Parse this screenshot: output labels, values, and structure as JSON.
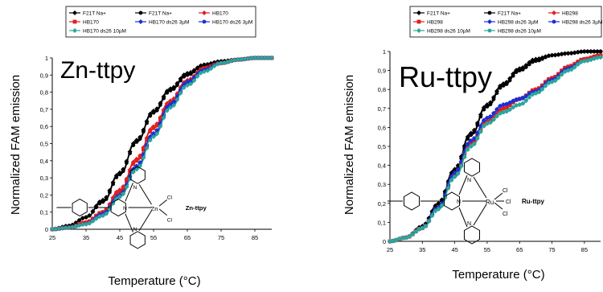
{
  "colors": {
    "black": "#000000",
    "red": "#e02020",
    "blue": "#1a2fd6",
    "teal": "#2aa69a",
    "frame": "#000000"
  },
  "chart_data": [
    {
      "type": "line",
      "title": "Zn-ttpy",
      "xlabel": "Temperature (°C)",
      "ylabel": "Normalized FAM emission",
      "xlim": [
        25,
        90
      ],
      "ylim": [
        0,
        1
      ],
      "xticks": [
        "25",
        "35",
        "45",
        "55",
        "65",
        "75",
        "85"
      ],
      "yticks": [
        "0",
        "0,1",
        "0,2",
        "0,3",
        "0,4",
        "0,5",
        "0,6",
        "0,7",
        "0,8",
        "0,9",
        "1"
      ],
      "legend": [
        "F21T Na+",
        "F21T Na+",
        "HB170",
        "HB170",
        "HB170 ds26 3µM",
        "HB170 ds26 3µM",
        "HB170 ds26 10µM"
      ],
      "structure_label": "Zn-ttpy",
      "atom_labels": {
        "metal": "Zn",
        "n": "N",
        "cl": "Cl"
      },
      "series": [
        {
          "color": "black",
          "marker": "diamond",
          "x": [
            25,
            30,
            35,
            40,
            45,
            50,
            55,
            60,
            65,
            70,
            75,
            80,
            85,
            90
          ],
          "y": [
            0.0,
            0.02,
            0.07,
            0.17,
            0.33,
            0.52,
            0.69,
            0.82,
            0.91,
            0.96,
            0.98,
            0.99,
            1.0,
            1.0
          ]
        },
        {
          "color": "black",
          "marker": "circle",
          "x": [
            25,
            30,
            35,
            40,
            45,
            50,
            55,
            60,
            65,
            70,
            75,
            80,
            85,
            90
          ],
          "y": [
            0.0,
            0.02,
            0.07,
            0.16,
            0.32,
            0.51,
            0.68,
            0.81,
            0.9,
            0.96,
            0.98,
            0.99,
            1.0,
            1.0
          ]
        },
        {
          "color": "red",
          "marker": "diamond",
          "x": [
            25,
            30,
            35,
            40,
            45,
            50,
            55,
            60,
            65,
            70,
            75,
            80,
            85,
            90
          ],
          "y": [
            0.0,
            0.01,
            0.04,
            0.1,
            0.23,
            0.41,
            0.6,
            0.75,
            0.87,
            0.94,
            0.97,
            0.99,
            1.0,
            1.0
          ]
        },
        {
          "color": "red",
          "marker": "square",
          "x": [
            25,
            30,
            35,
            40,
            45,
            50,
            55,
            60,
            65,
            70,
            75,
            80,
            85,
            90
          ],
          "y": [
            0.0,
            0.01,
            0.04,
            0.1,
            0.22,
            0.4,
            0.59,
            0.74,
            0.86,
            0.94,
            0.97,
            0.99,
            1.0,
            1.0
          ]
        },
        {
          "color": "blue",
          "marker": "diamond",
          "x": [
            25,
            30,
            35,
            40,
            45,
            50,
            55,
            60,
            65,
            70,
            75,
            80,
            85,
            90
          ],
          "y": [
            0.0,
            0.01,
            0.03,
            0.09,
            0.2,
            0.37,
            0.56,
            0.73,
            0.86,
            0.93,
            0.97,
            0.99,
            1.0,
            1.0
          ]
        },
        {
          "color": "blue",
          "marker": "circle",
          "x": [
            25,
            30,
            35,
            40,
            45,
            50,
            55,
            60,
            65,
            70,
            75,
            80,
            85,
            90
          ],
          "y": [
            0.0,
            0.01,
            0.03,
            0.08,
            0.19,
            0.36,
            0.55,
            0.72,
            0.85,
            0.93,
            0.97,
            0.99,
            1.0,
            1.0
          ]
        },
        {
          "color": "teal",
          "marker": "diamond",
          "x": [
            25,
            30,
            35,
            40,
            45,
            50,
            55,
            60,
            65,
            70,
            75,
            80,
            85,
            90
          ],
          "y": [
            0.0,
            0.01,
            0.03,
            0.08,
            0.19,
            0.35,
            0.54,
            0.71,
            0.84,
            0.92,
            0.97,
            0.99,
            1.0,
            1.0
          ]
        }
      ]
    },
    {
      "type": "line",
      "title": "Ru-ttpy",
      "xlabel": "Temperature (°C)",
      "ylabel": "Normalized FAM emission",
      "xlim": [
        25,
        90
      ],
      "ylim": [
        0,
        1
      ],
      "xticks": [
        "25",
        "35",
        "45",
        "55",
        "65",
        "75",
        "85"
      ],
      "yticks": [
        "0",
        "0,1",
        "0,2",
        "0,3",
        "0,4",
        "0,5",
        "0,6",
        "0,7",
        "0,8",
        "0,9",
        "1"
      ],
      "legend": [
        "F21T Na+",
        "F21T Na+",
        "HB298",
        "HB298",
        "HB298 ds26 3µM",
        "HB298 ds26 3µM",
        "HB298 ds26 10µM",
        "HB298 ds26 10µM"
      ],
      "structure_label": "Ru-ttpy",
      "atom_labels": {
        "metal": "Ru",
        "n": "N",
        "cl": "Cl"
      },
      "series": [
        {
          "color": "black",
          "marker": "diamond",
          "x": [
            25,
            30,
            35,
            40,
            45,
            50,
            55,
            60,
            65,
            70,
            75,
            80,
            85,
            90
          ],
          "y": [
            0.0,
            0.02,
            0.08,
            0.2,
            0.38,
            0.57,
            0.72,
            0.83,
            0.91,
            0.96,
            0.98,
            0.99,
            1.0,
            1.0
          ]
        },
        {
          "color": "black",
          "marker": "circle",
          "x": [
            25,
            30,
            35,
            40,
            45,
            50,
            55,
            60,
            65,
            70,
            75,
            80,
            85,
            90
          ],
          "y": [
            0.0,
            0.02,
            0.07,
            0.19,
            0.37,
            0.56,
            0.71,
            0.82,
            0.9,
            0.95,
            0.98,
            0.99,
            1.0,
            1.0
          ]
        },
        {
          "color": "red",
          "marker": "diamond",
          "x": [
            25,
            30,
            35,
            40,
            45,
            50,
            55,
            60,
            65,
            70,
            75,
            80,
            85,
            90
          ],
          "y": [
            0.0,
            0.02,
            0.07,
            0.18,
            0.36,
            0.52,
            0.63,
            0.7,
            0.75,
            0.8,
            0.86,
            0.92,
            0.96,
            0.98
          ]
        },
        {
          "color": "red",
          "marker": "square",
          "x": [
            25,
            30,
            35,
            40,
            45,
            50,
            55,
            60,
            65,
            70,
            75,
            80,
            85,
            90
          ],
          "y": [
            0.0,
            0.02,
            0.07,
            0.18,
            0.35,
            0.52,
            0.63,
            0.7,
            0.75,
            0.8,
            0.86,
            0.92,
            0.96,
            0.98
          ]
        },
        {
          "color": "blue",
          "marker": "diamond",
          "x": [
            25,
            30,
            35,
            40,
            45,
            50,
            55,
            60,
            65,
            70,
            75,
            80,
            85,
            90
          ],
          "y": [
            0.0,
            0.02,
            0.07,
            0.18,
            0.36,
            0.53,
            0.65,
            0.72,
            0.75,
            0.79,
            0.85,
            0.91,
            0.95,
            0.97
          ]
        },
        {
          "color": "blue",
          "marker": "circle",
          "x": [
            25,
            30,
            35,
            40,
            45,
            50,
            55,
            60,
            65,
            70,
            75,
            80,
            85,
            90
          ],
          "y": [
            0.0,
            0.02,
            0.07,
            0.18,
            0.36,
            0.53,
            0.65,
            0.72,
            0.75,
            0.79,
            0.85,
            0.91,
            0.95,
            0.97
          ]
        },
        {
          "color": "teal",
          "marker": "diamond",
          "x": [
            25,
            30,
            35,
            40,
            45,
            50,
            55,
            60,
            65,
            70,
            75,
            80,
            85,
            90
          ],
          "y": [
            0.0,
            0.02,
            0.07,
            0.17,
            0.34,
            0.5,
            0.62,
            0.68,
            0.72,
            0.78,
            0.84,
            0.9,
            0.95,
            0.97
          ]
        },
        {
          "color": "teal",
          "marker": "circle",
          "x": [
            25,
            30,
            35,
            40,
            45,
            50,
            55,
            60,
            65,
            70,
            75,
            80,
            85,
            90
          ],
          "y": [
            0.0,
            0.02,
            0.07,
            0.17,
            0.34,
            0.5,
            0.62,
            0.68,
            0.72,
            0.78,
            0.84,
            0.9,
            0.95,
            0.97
          ]
        }
      ]
    }
  ]
}
